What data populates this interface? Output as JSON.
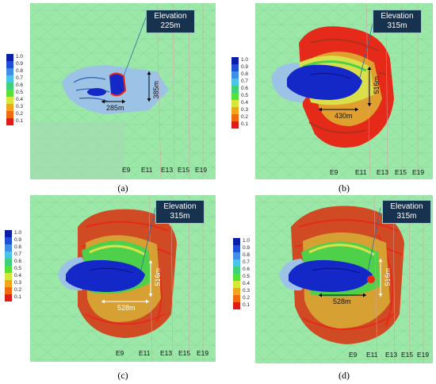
{
  "panels": [
    {
      "caption": "(a)",
      "elevation_title": "Elevation",
      "elevation_value": "225m",
      "width_label": "285m",
      "height_label": "385m",
      "x_labels": [
        "E9",
        "E11",
        "E13",
        "E15",
        "E19"
      ]
    },
    {
      "caption": "(b)",
      "elevation_title": "Elevation",
      "elevation_value": "315m",
      "width_label": "430m",
      "height_label": "516m",
      "x_labels": [
        "E9",
        "E11",
        "E13",
        "E15",
        "E19"
      ]
    },
    {
      "caption": "(c)",
      "elevation_title": "Elevation",
      "elevation_value": "315m",
      "width_label": "528m",
      "height_label": "516m",
      "x_labels": [
        "E9",
        "E11",
        "E13",
        "E15",
        "E19"
      ]
    },
    {
      "caption": "(d)",
      "elevation_title": "Elevation",
      "elevation_value": "315m",
      "width_label": "528m",
      "height_label": "516m",
      "x_labels": [
        "E9",
        "E11",
        "E13",
        "E15",
        "E19"
      ]
    }
  ],
  "legend": {
    "labels": [
      "1.0",
      "0.9",
      "0.8",
      "0.7",
      "0.6",
      "0.5",
      "0.4",
      "0.3",
      "0.2",
      "0.1"
    ],
    "colors": [
      "#0a1ea8",
      "#1f4fd8",
      "#3f8fe6",
      "#47c4e8",
      "#3fd07a",
      "#55e03a",
      "#d6e63a",
      "#f2a51a",
      "#f06a10",
      "#e31a1a"
    ]
  },
  "colors": {
    "background_green": "#9be8a8",
    "mesh_line": "#7fcf90",
    "light_blue": "#9cc3e6",
    "dark_blue": "#1428c8",
    "red": "#e52a1a",
    "dark_red": "#b0301c",
    "orange": "#e0a030",
    "yellow": "#d9e04a",
    "green": "#4fd04a",
    "elevation_box": "#16324f"
  }
}
